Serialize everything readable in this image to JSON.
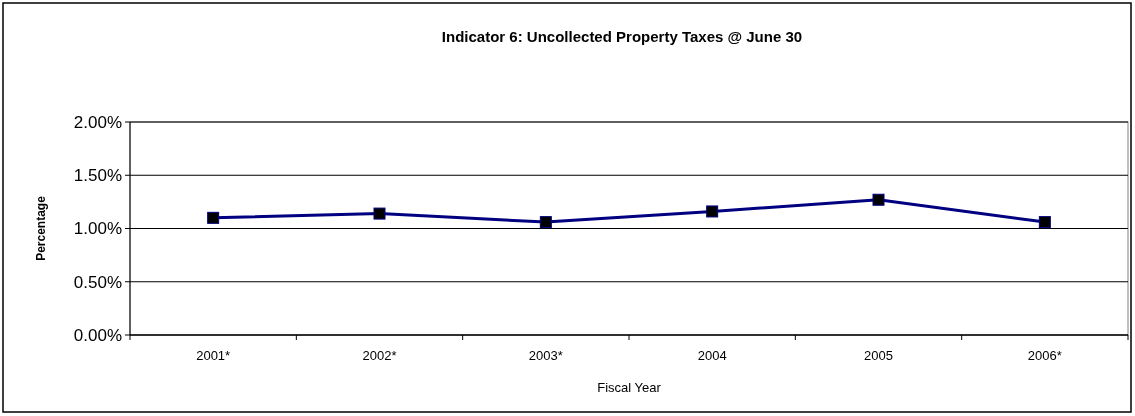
{
  "chart_data": {
    "type": "line",
    "title": "Indicator 6: Uncollected Property Taxes @ June 30",
    "xlabel": "Fiscal Year",
    "ylabel": "Percentage",
    "categories": [
      "2001*",
      "2002*",
      "2003*",
      "2004",
      "2005",
      "2006*"
    ],
    "series": [
      {
        "color": "#000080",
        "values": [
          1.1,
          1.14,
          1.06,
          1.16,
          1.27,
          1.06
        ]
      }
    ],
    "ylim": [
      0,
      2
    ],
    "yticks": [
      {
        "value": 0,
        "label": "0.00%"
      },
      {
        "value": 0.5,
        "label": "0.50%"
      },
      {
        "value": 1,
        "label": "1.00%"
      },
      {
        "value": 1.5,
        "label": "1.50%"
      },
      {
        "value": 2,
        "label": "2.00%"
      }
    ],
    "grid": "y",
    "marker": "square",
    "line_style": "solid"
  }
}
